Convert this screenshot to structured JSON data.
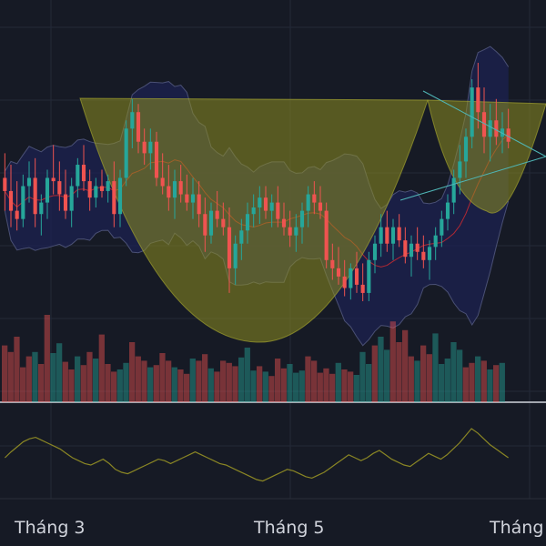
{
  "colors": {
    "background": "#161a25",
    "grid": "#242938",
    "up": "#26a69a",
    "down": "#ef5350",
    "bb_fill": "#1c2250",
    "bb_band": "#4a5074",
    "bb_basis": "#b22833",
    "cup_fill": "#8e8e20",
    "oscillator": "#8a8624",
    "axis_text": "#d1d4dc",
    "triangle": "#4fb6b6"
  },
  "chart_data": {
    "type": "candlestick",
    "title": "",
    "x_tick_labels": [
      "Tháng 3",
      "Tháng 5",
      "Tháng"
    ],
    "annotations": [
      "cup-and-handle pattern (shaded)",
      "symmetrical triangle"
    ],
    "indicators": [
      "Bollinger Bands",
      "Volume",
      "Oscillator"
    ],
    "candles": [
      {
        "o": 170,
        "h": 185,
        "l": 150,
        "c": 162
      },
      {
        "o": 162,
        "h": 178,
        "l": 140,
        "c": 150
      },
      {
        "o": 150,
        "h": 168,
        "l": 138,
        "c": 145
      },
      {
        "o": 145,
        "h": 172,
        "l": 140,
        "c": 165
      },
      {
        "o": 165,
        "h": 180,
        "l": 155,
        "c": 170
      },
      {
        "o": 170,
        "h": 182,
        "l": 140,
        "c": 148
      },
      {
        "o": 148,
        "h": 160,
        "l": 135,
        "c": 155
      },
      {
        "o": 155,
        "h": 175,
        "l": 145,
        "c": 170
      },
      {
        "o": 170,
        "h": 190,
        "l": 160,
        "c": 168
      },
      {
        "o": 168,
        "h": 180,
        "l": 150,
        "c": 160
      },
      {
        "o": 160,
        "h": 175,
        "l": 145,
        "c": 150
      },
      {
        "o": 150,
        "h": 170,
        "l": 140,
        "c": 165
      },
      {
        "o": 165,
        "h": 182,
        "l": 158,
        "c": 178
      },
      {
        "o": 178,
        "h": 190,
        "l": 162,
        "c": 168
      },
      {
        "o": 168,
        "h": 175,
        "l": 150,
        "c": 158
      },
      {
        "o": 158,
        "h": 170,
        "l": 152,
        "c": 165
      },
      {
        "o": 165,
        "h": 175,
        "l": 158,
        "c": 162
      },
      {
        "o": 162,
        "h": 172,
        "l": 155,
        "c": 168
      },
      {
        "o": 168,
        "h": 180,
        "l": 140,
        "c": 148
      },
      {
        "o": 148,
        "h": 175,
        "l": 140,
        "c": 170
      },
      {
        "o": 170,
        "h": 205,
        "l": 165,
        "c": 200
      },
      {
        "o": 200,
        "h": 218,
        "l": 188,
        "c": 210
      },
      {
        "o": 210,
        "h": 215,
        "l": 185,
        "c": 192
      },
      {
        "o": 192,
        "h": 200,
        "l": 178,
        "c": 185
      },
      {
        "o": 185,
        "h": 200,
        "l": 175,
        "c": 192
      },
      {
        "o": 192,
        "h": 198,
        "l": 165,
        "c": 170
      },
      {
        "o": 170,
        "h": 185,
        "l": 160,
        "c": 165
      },
      {
        "o": 165,
        "h": 178,
        "l": 150,
        "c": 158
      },
      {
        "o": 158,
        "h": 175,
        "l": 145,
        "c": 168
      },
      {
        "o": 168,
        "h": 178,
        "l": 155,
        "c": 160
      },
      {
        "o": 160,
        "h": 172,
        "l": 150,
        "c": 155
      },
      {
        "o": 155,
        "h": 170,
        "l": 145,
        "c": 160
      },
      {
        "o": 160,
        "h": 168,
        "l": 140,
        "c": 148
      },
      {
        "o": 148,
        "h": 158,
        "l": 125,
        "c": 135
      },
      {
        "o": 135,
        "h": 155,
        "l": 130,
        "c": 150
      },
      {
        "o": 150,
        "h": 162,
        "l": 140,
        "c": 145
      },
      {
        "o": 145,
        "h": 155,
        "l": 135,
        "c": 140
      },
      {
        "o": 140,
        "h": 152,
        "l": 100,
        "c": 115
      },
      {
        "o": 115,
        "h": 135,
        "l": 105,
        "c": 130
      },
      {
        "o": 130,
        "h": 145,
        "l": 120,
        "c": 138
      },
      {
        "o": 138,
        "h": 155,
        "l": 130,
        "c": 148
      },
      {
        "o": 148,
        "h": 160,
        "l": 140,
        "c": 152
      },
      {
        "o": 152,
        "h": 165,
        "l": 142,
        "c": 158
      },
      {
        "o": 158,
        "h": 165,
        "l": 145,
        "c": 150
      },
      {
        "o": 150,
        "h": 160,
        "l": 140,
        "c": 155
      },
      {
        "o": 155,
        "h": 165,
        "l": 140,
        "c": 145
      },
      {
        "o": 145,
        "h": 155,
        "l": 135,
        "c": 140
      },
      {
        "o": 140,
        "h": 150,
        "l": 128,
        "c": 135
      },
      {
        "o": 135,
        "h": 148,
        "l": 125,
        "c": 140
      },
      {
        "o": 140,
        "h": 155,
        "l": 130,
        "c": 150
      },
      {
        "o": 150,
        "h": 165,
        "l": 140,
        "c": 160
      },
      {
        "o": 160,
        "h": 168,
        "l": 148,
        "c": 155
      },
      {
        "o": 155,
        "h": 165,
        "l": 145,
        "c": 150
      },
      {
        "o": 150,
        "h": 155,
        "l": 115,
        "c": 120
      },
      {
        "o": 120,
        "h": 130,
        "l": 108,
        "c": 115
      },
      {
        "o": 115,
        "h": 128,
        "l": 105,
        "c": 110
      },
      {
        "o": 110,
        "h": 120,
        "l": 98,
        "c": 103
      },
      {
        "o": 103,
        "h": 118,
        "l": 96,
        "c": 115
      },
      {
        "o": 115,
        "h": 125,
        "l": 100,
        "c": 105
      },
      {
        "o": 105,
        "h": 118,
        "l": 95,
        "c": 100
      },
      {
        "o": 100,
        "h": 125,
        "l": 95,
        "c": 120
      },
      {
        "o": 120,
        "h": 135,
        "l": 112,
        "c": 130
      },
      {
        "o": 130,
        "h": 148,
        "l": 122,
        "c": 140
      },
      {
        "o": 140,
        "h": 150,
        "l": 125,
        "c": 130
      },
      {
        "o": 130,
        "h": 145,
        "l": 120,
        "c": 140
      },
      {
        "o": 140,
        "h": 148,
        "l": 128,
        "c": 132
      },
      {
        "o": 132,
        "h": 140,
        "l": 118,
        "c": 122
      },
      {
        "o": 122,
        "h": 135,
        "l": 110,
        "c": 130
      },
      {
        "o": 130,
        "h": 140,
        "l": 120,
        "c": 125
      },
      {
        "o": 125,
        "h": 135,
        "l": 115,
        "c": 120
      },
      {
        "o": 120,
        "h": 132,
        "l": 108,
        "c": 128
      },
      {
        "o": 128,
        "h": 140,
        "l": 120,
        "c": 135
      },
      {
        "o": 135,
        "h": 150,
        "l": 128,
        "c": 145
      },
      {
        "o": 145,
        "h": 160,
        "l": 138,
        "c": 155
      },
      {
        "o": 155,
        "h": 175,
        "l": 148,
        "c": 170
      },
      {
        "o": 170,
        "h": 190,
        "l": 160,
        "c": 180
      },
      {
        "o": 180,
        "h": 200,
        "l": 170,
        "c": 195
      },
      {
        "o": 195,
        "h": 230,
        "l": 188,
        "c": 225
      },
      {
        "o": 225,
        "h": 240,
        "l": 200,
        "c": 210
      },
      {
        "o": 210,
        "h": 225,
        "l": 185,
        "c": 195
      },
      {
        "o": 195,
        "h": 215,
        "l": 180,
        "c": 205
      },
      {
        "o": 205,
        "h": 218,
        "l": 190,
        "c": 195
      },
      {
        "o": 195,
        "h": 210,
        "l": 185,
        "c": 200
      },
      {
        "o": 200,
        "h": 212,
        "l": 188,
        "c": 192
      }
    ],
    "volume": [
      0.52,
      0.46,
      0.6,
      0.32,
      0.42,
      0.46,
      0.35,
      0.8,
      0.45,
      0.54,
      0.37,
      0.3,
      0.42,
      0.34,
      0.46,
      0.4,
      0.62,
      0.35,
      0.28,
      0.3,
      0.36,
      0.55,
      0.42,
      0.38,
      0.32,
      0.34,
      0.45,
      0.38,
      0.32,
      0.3,
      0.26,
      0.4,
      0.38,
      0.44,
      0.31,
      0.28,
      0.38,
      0.36,
      0.33,
      0.41,
      0.5,
      0.29,
      0.33,
      0.28,
      0.24,
      0.4,
      0.31,
      0.35,
      0.27,
      0.29,
      0.42,
      0.38,
      0.27,
      0.31,
      0.26,
      0.36,
      0.3,
      0.28,
      0.25,
      0.46,
      0.35,
      0.52,
      0.6,
      0.48,
      0.74,
      0.55,
      0.66,
      0.42,
      0.38,
      0.52,
      0.44,
      0.63,
      0.35,
      0.4,
      0.55,
      0.48,
      0.32,
      0.36,
      0.42,
      0.38,
      0.3,
      0.34,
      0.36
    ],
    "oscillator": [
      40,
      48,
      55,
      62,
      66,
      68,
      64,
      60,
      56,
      52,
      46,
      40,
      36,
      32,
      30,
      34,
      38,
      32,
      24,
      20,
      18,
      22,
      26,
      30,
      34,
      38,
      36,
      32,
      36,
      40,
      44,
      48,
      44,
      40,
      36,
      32,
      30,
      26,
      22,
      18,
      14,
      10,
      8,
      12,
      16,
      20,
      24,
      22,
      18,
      14,
      12,
      16,
      20,
      26,
      32,
      38,
      44,
      40,
      36,
      40,
      46,
      50,
      44,
      38,
      34,
      30,
      28,
      34,
      40,
      46,
      42,
      38,
      44,
      52,
      60,
      70,
      80,
      74,
      66,
      58,
      52,
      46,
      40
    ],
    "volume_up_flags": [
      0,
      0,
      0,
      0,
      0,
      1,
      0,
      0,
      1,
      1,
      0,
      0,
      1,
      0,
      0,
      1,
      0,
      0,
      0,
      1,
      1,
      0,
      0,
      0,
      1,
      0,
      0,
      0,
      1,
      0,
      0,
      1,
      0,
      0,
      1,
      0,
      0,
      0,
      0,
      1,
      1,
      1,
      0,
      1,
      0,
      0,
      0,
      1,
      1,
      1,
      0,
      0,
      0,
      0,
      0,
      1,
      0,
      0,
      1,
      1,
      1,
      0,
      1,
      1,
      0,
      0,
      0,
      0,
      1,
      0,
      0,
      1,
      1,
      1,
      1,
      1,
      0,
      0,
      1,
      0,
      1,
      0,
      1
    ]
  }
}
